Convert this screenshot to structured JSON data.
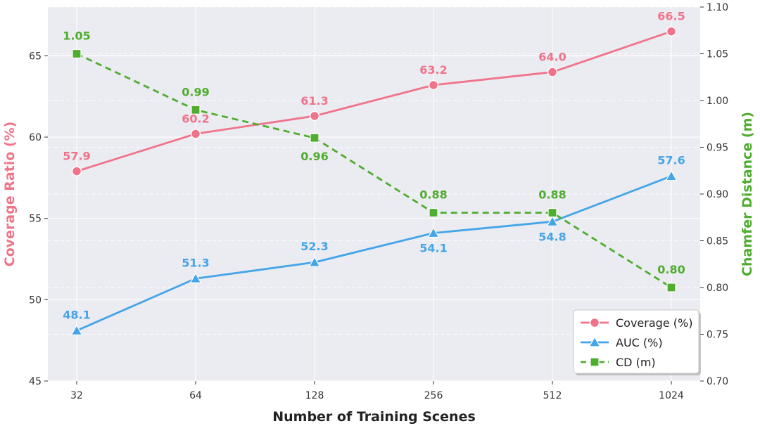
{
  "chart_data": {
    "type": "line",
    "x": [
      "32",
      "64",
      "128",
      "256",
      "512",
      "1024"
    ],
    "xlabel": "Number of Training Scenes",
    "ylabel_left": "Coverage Ratio (%)",
    "ylabel_right": "Chamfer Distance (m)",
    "ylim_left": [
      45,
      68
    ],
    "ylim_right": [
      0.7,
      1.1
    ],
    "yticks_left": [
      "45",
      "50",
      "55",
      "60",
      "65"
    ],
    "yticks_right": [
      "0.70",
      "0.75",
      "0.80",
      "0.85",
      "0.90",
      "0.95",
      "1.00",
      "1.05",
      "1.10"
    ],
    "grid": true,
    "legend_position": "bottom-right",
    "series": [
      {
        "name": "Coverage (%)",
        "axis": "left",
        "marker": "circle",
        "linestyle": "solid",
        "color": "#f07489",
        "values": [
          57.9,
          60.2,
          61.3,
          63.2,
          64.0,
          66.5
        ],
        "labels": [
          "57.9",
          "60.2",
          "61.3",
          "63.2",
          "64.0",
          "66.5"
        ]
      },
      {
        "name": "AUC (%)",
        "axis": "left",
        "marker": "triangle",
        "linestyle": "solid",
        "color": "#44a5e8",
        "values": [
          48.1,
          51.3,
          52.3,
          54.1,
          54.8,
          57.6
        ],
        "labels": [
          "48.1",
          "51.3",
          "52.3",
          "54.1",
          "54.8",
          "57.6"
        ]
      },
      {
        "name": "CD (m)",
        "axis": "right",
        "marker": "square",
        "linestyle": "dashed",
        "color": "#4fad2f",
        "values": [
          1.05,
          0.99,
          0.96,
          0.88,
          0.88,
          0.8
        ],
        "labels": [
          "1.05",
          "0.99",
          "0.96",
          "0.88",
          "0.88",
          "0.80"
        ]
      }
    ]
  },
  "colors": {
    "plot_background": "#ebebf2",
    "grid": "#ffffff",
    "left_axis_title": "#f07489",
    "right_axis_title": "#4fad2f"
  }
}
